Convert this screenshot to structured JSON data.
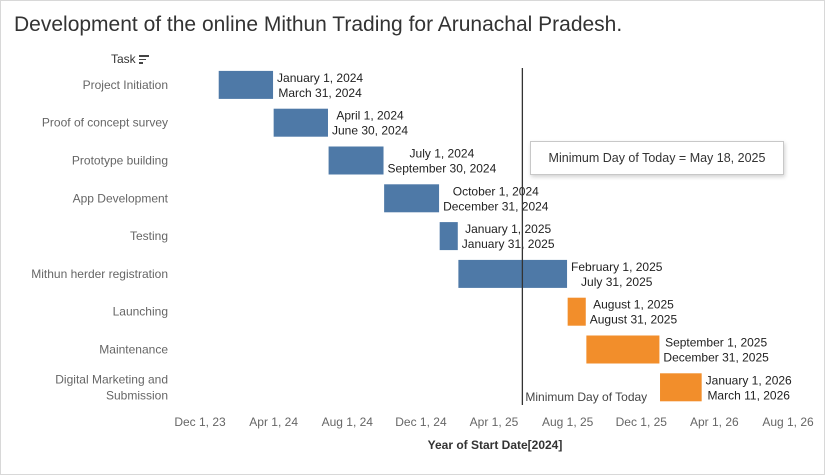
{
  "header": {
    "title": "Development of the online Mithun Trading for Arunachal Pradesh.",
    "task_label": "Task",
    "task_sort_icon": "sort-descending-icon"
  },
  "tooltip": {
    "text": "Minimum Day of Today = May 18, 2025"
  },
  "colors": {
    "completed": "#4e79a7",
    "upcoming": "#f28e2b",
    "today_line": "#333333"
  },
  "chart_data": {
    "type": "gantt",
    "title": "Development of the online Mithun Trading for Arunachal Pradesh.",
    "xlabel": "Year of Start Date[2024]",
    "ylabel": "Task",
    "x_ticks": [
      "Dec 1, 23",
      "Apr 1, 24",
      "Aug 1, 24",
      "Dec 1, 24",
      "Apr 1, 25",
      "Aug 1, 25",
      "Dec 1, 25",
      "Apr 1, 26",
      "Aug 1, 26"
    ],
    "x_tick_dates": [
      "2023-12-01",
      "2024-04-01",
      "2024-08-01",
      "2024-12-01",
      "2025-04-01",
      "2025-08-01",
      "2025-12-01",
      "2026-04-01",
      "2026-08-01"
    ],
    "reference_line": {
      "label": "Minimum Day of Today",
      "date": "2025-05-18"
    },
    "tasks": [
      {
        "task": "Project Initiation",
        "start": "2024-01-01",
        "end": "2024-03-31",
        "start_label": "January 1, 2024",
        "end_label": "March 31, 2024",
        "color": "#4e79a7"
      },
      {
        "task": "Proof of concept survey",
        "start": "2024-04-01",
        "end": "2024-06-30",
        "start_label": "April 1, 2024",
        "end_label": "June 30, 2024",
        "color": "#4e79a7"
      },
      {
        "task": "Prototype building",
        "start": "2024-07-01",
        "end": "2024-09-30",
        "start_label": "July 1, 2024",
        "end_label": "September 30, 2024",
        "color": "#4e79a7"
      },
      {
        "task": "App Development",
        "start": "2024-10-01",
        "end": "2024-12-31",
        "start_label": "October 1, 2024",
        "end_label": "December 31, 2024",
        "color": "#4e79a7"
      },
      {
        "task": "Testing",
        "start": "2025-01-01",
        "end": "2025-01-31",
        "start_label": "January 1, 2025",
        "end_label": "January 31, 2025",
        "color": "#4e79a7"
      },
      {
        "task": "Mithun herder registration",
        "start": "2025-02-01",
        "end": "2025-07-31",
        "start_label": "February 1, 2025",
        "end_label": "July 31, 2025",
        "color": "#4e79a7"
      },
      {
        "task": "Launching",
        "start": "2025-08-01",
        "end": "2025-08-31",
        "start_label": "August 1, 2025",
        "end_label": "August 31, 2025",
        "color": "#f28e2b"
      },
      {
        "task": "Maintenance",
        "start": "2025-09-01",
        "end": "2025-12-31",
        "start_label": "September 1, 2025",
        "end_label": "December 31, 2025",
        "color": "#f28e2b"
      },
      {
        "task": "Digital Marketing and Submission",
        "task_lines": [
          "Digital Marketing and",
          "Submission"
        ],
        "start": "2026-01-01",
        "end": "2026-03-11",
        "start_label": "January 1, 2026",
        "end_label": "March 11, 2026",
        "color": "#f28e2b"
      }
    ]
  }
}
